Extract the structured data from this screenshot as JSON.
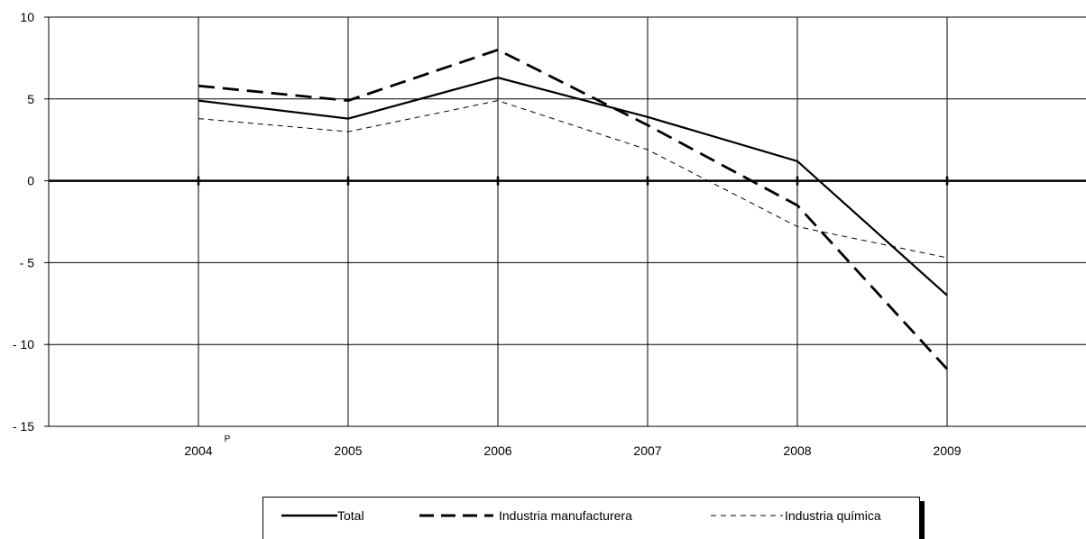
{
  "chart_data": {
    "type": "line",
    "categories": [
      "2004",
      "2005",
      "2006",
      "2007",
      "2008",
      "2009"
    ],
    "category_superscripts": {
      "2004": "P"
    },
    "series": [
      {
        "name": "Total",
        "values": [
          4.9,
          3.8,
          6.3,
          3.9,
          1.2,
          -7.0
        ],
        "style": "solid"
      },
      {
        "name": "Industria manufacturera",
        "values": [
          5.8,
          4.9,
          8.0,
          3.4,
          -1.5,
          -11.5
        ],
        "style": "dashed"
      },
      {
        "name": "Industria química",
        "values": [
          3.8,
          3.0,
          4.9,
          1.9,
          -2.8,
          -4.7
        ],
        "style": "thin-dashed"
      }
    ],
    "y_ticks": [
      "10",
      "5",
      "0",
      "- 5",
      "- 10",
      "- 15"
    ],
    "y_tick_values": [
      10,
      5,
      0,
      -5,
      -10,
      -15
    ],
    "ylim": [
      -15,
      10
    ],
    "grid": true,
    "legend_position": "bottom",
    "title": "",
    "xlabel": "",
    "ylabel": ""
  }
}
